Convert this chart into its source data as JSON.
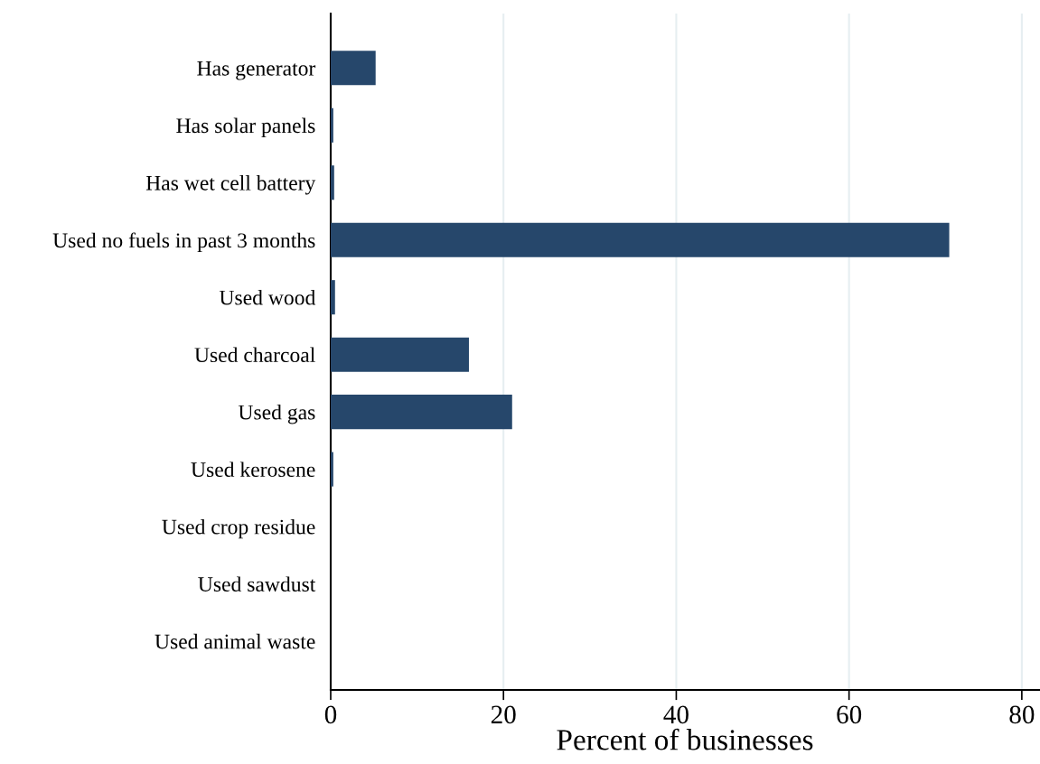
{
  "chart_data": {
    "type": "bar",
    "orientation": "horizontal",
    "xlabel": "Percent of businesses",
    "categories": [
      "Has generator",
      "Has solar panels",
      "Has wet cell battery",
      "Used no fuels in past 3 months",
      "Used wood",
      "Used charcoal",
      "Used gas",
      "Used kerosene",
      "Used crop residue",
      "Used sawdust",
      "Used animal waste"
    ],
    "values": [
      5.2,
      0.3,
      0.4,
      71.6,
      0.5,
      16.0,
      21.0,
      0.3,
      0,
      0,
      0
    ],
    "color": "#26476b",
    "xlim": [
      0,
      82
    ],
    "xticks": [
      0,
      20,
      40,
      60,
      80
    ],
    "grid": "x"
  }
}
